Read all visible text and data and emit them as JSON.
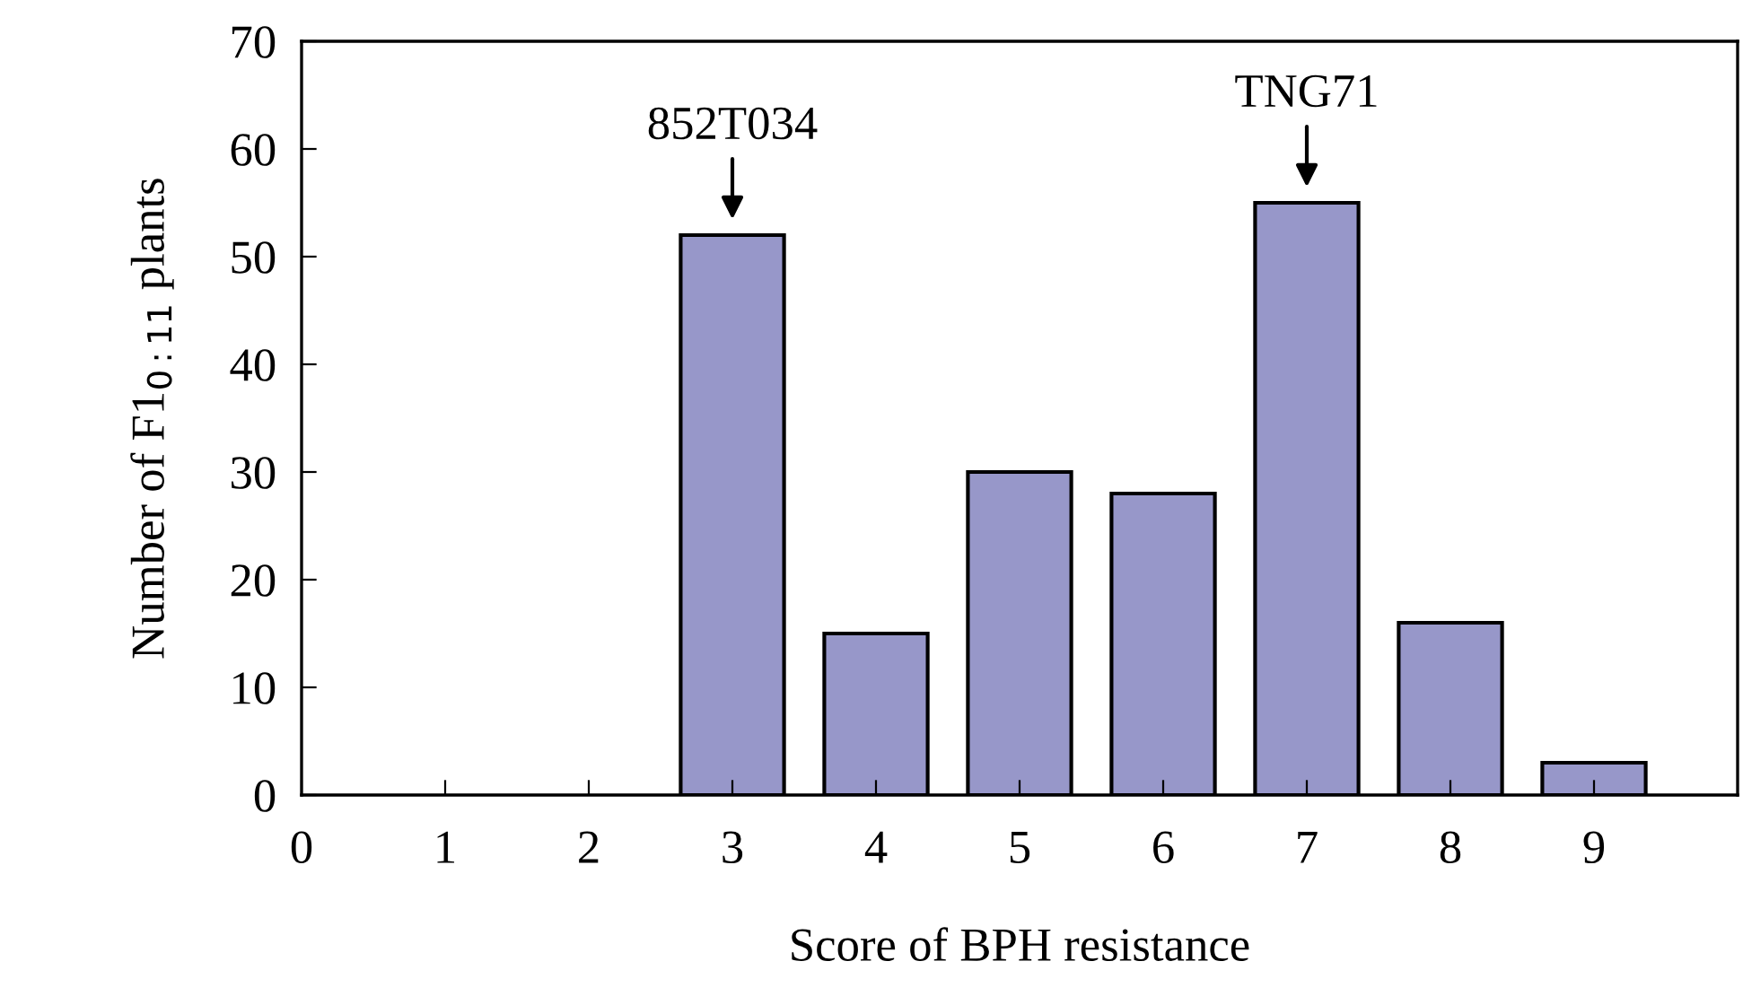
{
  "chart_data": {
    "type": "bar",
    "xlabel": "Score of BPH resistance",
    "ylabel": "Number of F1$_{0:11}$ plants",
    "x": [
      3,
      4,
      5,
      6,
      7,
      8,
      9
    ],
    "values": [
      52,
      15,
      30,
      28,
      55,
      16,
      3
    ],
    "color": "#9797c9",
    "xlim": [
      0,
      10
    ],
    "xticks": [
      0,
      1,
      2,
      3,
      4,
      5,
      6,
      7,
      8,
      9
    ],
    "ylim": [
      0,
      70
    ],
    "yticks": [
      0,
      10,
      20,
      30,
      40,
      50,
      60,
      70
    ],
    "annotations": [
      {
        "text": "852T034",
        "x": 3,
        "y": 52
      },
      {
        "text": "TNG71",
        "x": 7,
        "y": 55
      }
    ],
    "grid": false,
    "legend": false
  }
}
